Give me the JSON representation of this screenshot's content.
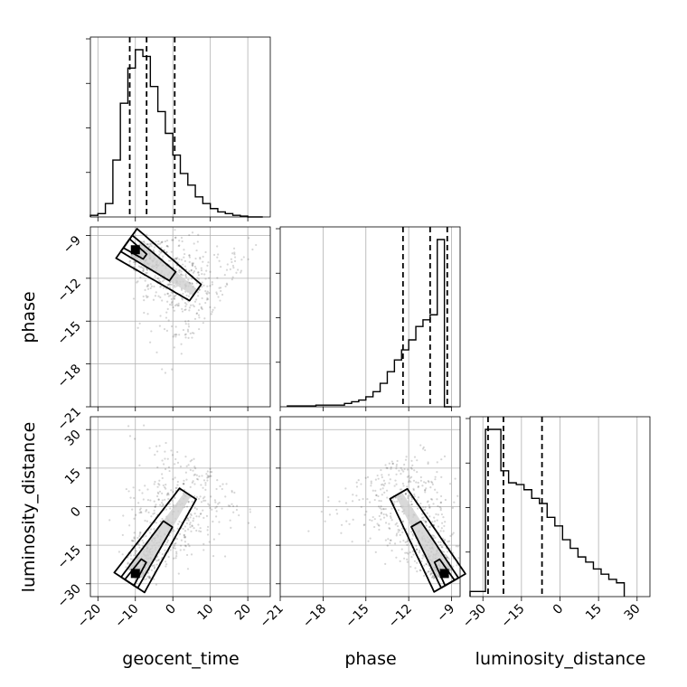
{
  "chart_data": {
    "type": "corner",
    "parameters": [
      "geocent_time",
      "phase",
      "luminosity_distance"
    ],
    "ranges": {
      "geocent_time": [
        -22,
        26
      ],
      "phase": [
        -21,
        -8.4
      ],
      "luminosity_distance": [
        -35,
        35
      ]
    },
    "ticks": {
      "geocent_time": [
        -20,
        -10,
        0,
        10,
        20
      ],
      "phase": [
        -21,
        -18,
        -15,
        -12,
        -9
      ],
      "luminosity_distance": [
        -30,
        -15,
        0,
        15,
        30
      ]
    },
    "quantiles": {
      "geocent_time": [
        -11.5,
        -7,
        0.5
      ],
      "phase": [
        -12.4,
        -10.5,
        -9.3
      ],
      "luminosity_distance": [
        -28,
        -22,
        -7
      ]
    },
    "histograms": {
      "geocent_time": {
        "edges": [
          -22,
          -20,
          -18,
          -16,
          -14,
          -12,
          -10,
          -8,
          -6,
          -4,
          -2,
          0,
          2,
          4,
          6,
          8,
          10,
          12,
          14,
          16,
          18,
          20,
          22,
          24
        ],
        "counts": [
          0.01,
          0.02,
          0.08,
          0.34,
          0.68,
          0.89,
          1.0,
          0.96,
          0.78,
          0.63,
          0.5,
          0.37,
          0.26,
          0.19,
          0.12,
          0.08,
          0.05,
          0.03,
          0.02,
          0.01,
          0.005,
          0.0,
          0.0
        ]
      },
      "phase": {
        "edges": [
          -20.5,
          -20,
          -19.5,
          -19,
          -18.5,
          -18,
          -17.5,
          -17,
          -16.5,
          -16,
          -15.5,
          -15,
          -14.5,
          -14,
          -13.5,
          -13,
          -12.5,
          -12,
          -11.5,
          -11,
          -10.5,
          -10,
          -9.5,
          -9
        ],
        "counts": [
          0.005,
          0.005,
          0.005,
          0.005,
          0.01,
          0.01,
          0.01,
          0.01,
          0.02,
          0.03,
          0.04,
          0.06,
          0.09,
          0.14,
          0.21,
          0.28,
          0.34,
          0.4,
          0.48,
          0.52,
          0.55,
          1.0,
          0.0
        ]
      },
      "luminosity_distance": {
        "edges": [
          -35,
          -32,
          -29,
          -26,
          -23,
          -20,
          -17,
          -14,
          -11,
          -8,
          -5,
          -2,
          1,
          4,
          7,
          10,
          13,
          16,
          19,
          22,
          25
        ],
        "counts": [
          0.03,
          0.03,
          0.97,
          0.97,
          0.73,
          0.66,
          0.65,
          0.62,
          0.57,
          0.54,
          0.46,
          0.41,
          0.33,
          0.28,
          0.23,
          0.2,
          0.16,
          0.13,
          0.1,
          0.08,
          0.0
        ]
      }
    },
    "joint_modes": {
      "phase_vs_geocent_time": {
        "x": -10,
        "y": -10,
        "extent_to": [
          6,
          -13
        ]
      },
      "luminosity_distance_vs_geocent_time": {
        "x": -10,
        "y": -26,
        "extent_to": [
          4,
          5
        ]
      },
      "luminosity_distance_vs_phase": {
        "x": -9.5,
        "y": -26,
        "extent_to": [
          -12.7,
          5
        ]
      }
    },
    "grid": true,
    "xlabel_bottom": [
      "geocent_time",
      "phase",
      "luminosity_distance"
    ],
    "ylabel_left": [
      "phase",
      "luminosity_distance"
    ]
  }
}
